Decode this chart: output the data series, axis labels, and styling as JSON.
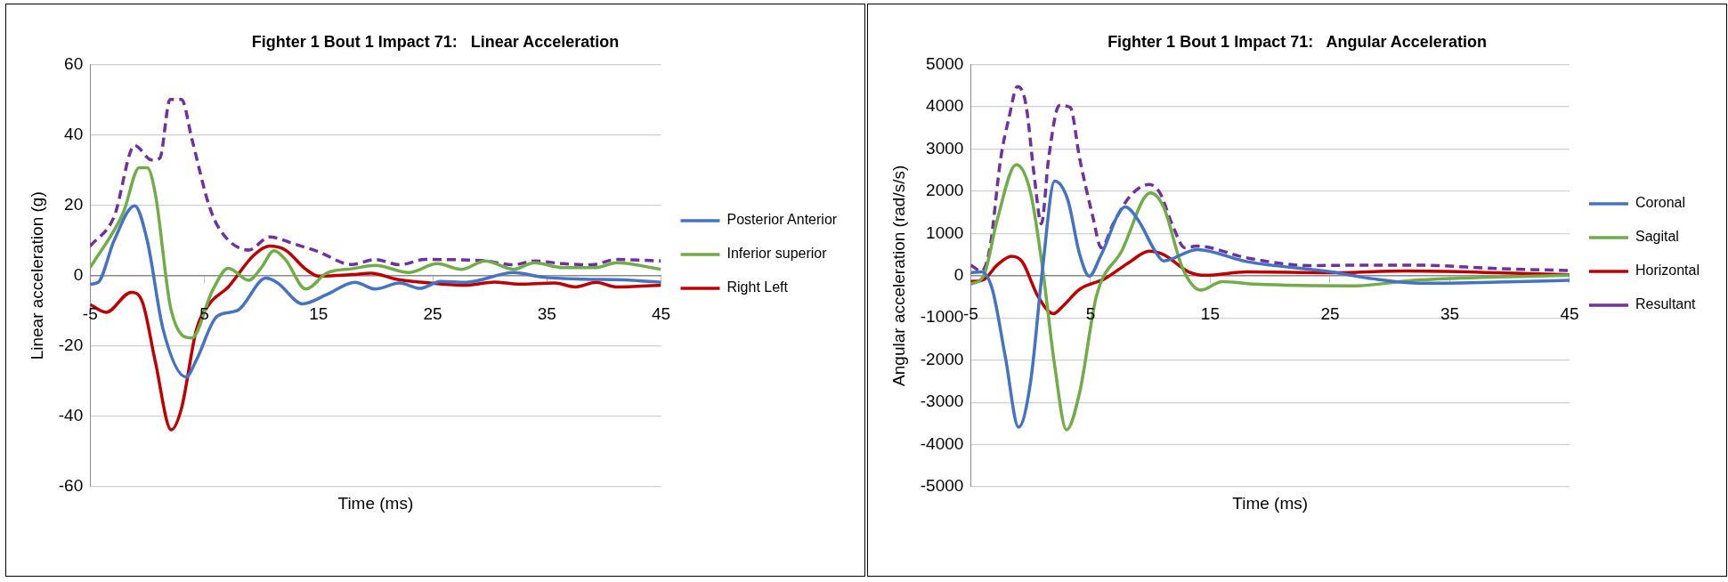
{
  "chart_data": [
    {
      "type": "line",
      "title": "Fighter 1 Bout 1 Impact 71:   Linear Acceleration",
      "xlabel": "Time (ms)",
      "ylabel": "Linear acceleration (g)",
      "xlim": [
        -5,
        45
      ],
      "xticks": [
        -5,
        5,
        15,
        25,
        35,
        45
      ],
      "ylim": [
        -60,
        60
      ],
      "yticks": [
        -60,
        -40,
        -20,
        0,
        20,
        40,
        60
      ],
      "grid": "y",
      "legend": "right",
      "marker": "none",
      "series": [
        {
          "name": "Posterior Anterior",
          "color": "#4472c4",
          "x": [
            -5,
            -4.3,
            -2.9,
            -1.1,
            0,
            1.4,
            3.4,
            4.3,
            6.1,
            7.9,
            10.4,
            11.4,
            13.6,
            15.7,
            18.2,
            20,
            22.1,
            23.9,
            25.7,
            27.9,
            32.1,
            34.6,
            38.2,
            41.8,
            45
          ],
          "values": [
            -2.4,
            -1.9,
            10,
            19.9,
            10,
            -15.4,
            -28.8,
            -24,
            -11.6,
            -9.9,
            -0.7,
            -2,
            -8,
            -5.4,
            -1.9,
            -3.8,
            -2.1,
            -3.6,
            -1.6,
            -1.9,
            0.9,
            -0.4,
            -1,
            -1.2,
            -1.9
          ]
        },
        {
          "name": "Inferior superior",
          "color": "#70ad47",
          "x": [
            -5,
            -2.1,
            -0.7,
            0,
            0.7,
            2.1,
            3.9,
            5.7,
            7.1,
            8.9,
            10,
            11.1,
            12.1,
            13.9,
            15.7,
            18,
            20,
            22.9,
            25.4,
            27.5,
            29.6,
            32.1,
            33.9,
            36.4,
            39.3,
            41.1,
            45
          ],
          "values": [
            2.3,
            17.9,
            30.7,
            30.7,
            23.4,
            -9.9,
            -17.7,
            -4.3,
            2.1,
            -1.3,
            2.3,
            7.1,
            4.6,
            -3.8,
            0.7,
            2,
            2.9,
            0.9,
            3.4,
            1.8,
            4.2,
            1.8,
            3.7,
            2.3,
            2.3,
            3.7,
            1.8
          ]
        },
        {
          "name": "Right Left",
          "color": "#c00000",
          "x": [
            -5,
            -3.6,
            -1.4,
            -0.4,
            0.7,
            2.1,
            3,
            4.3,
            5.4,
            7.1,
            9.3,
            10.7,
            12.1,
            13.9,
            15,
            17.9,
            19.6,
            21.8,
            23.9,
            27.9,
            30.4,
            32.5,
            35.7,
            37.5,
            39.3,
            41.1,
            45
          ],
          "values": [
            -8.2,
            -10.4,
            -4.7,
            -7.7,
            -24.3,
            -43.8,
            -37.7,
            -15.4,
            -8.2,
            -3.2,
            5.7,
            8.4,
            7.3,
            1.8,
            -0.1,
            0.3,
            0.7,
            -1,
            -1.8,
            -2.7,
            -1.8,
            -2.4,
            -2.1,
            -3.2,
            -1.9,
            -3.2,
            -2.7
          ]
        },
        {
          "color": "#7030a0",
          "line_style": "dashed",
          "x": [
            -5,
            -2.9,
            -1.1,
            0.4,
            1.1,
            2,
            3,
            3.9,
            5.4,
            6.4,
            8.9,
            10.7,
            12.9,
            15,
            17.9,
            20,
            22.1,
            24.3,
            29.3,
            32.1,
            33.9,
            36.4,
            38.9,
            41.1,
            45
          ],
          "values": [
            8.4,
            16.8,
            37,
            32.9,
            33.4,
            50.1,
            50.1,
            39,
            20.1,
            12.9,
            7.3,
            11,
            9,
            6.8,
            3.2,
            4.6,
            3.1,
            4.6,
            4.3,
            3.1,
            4.2,
            3.4,
            3.1,
            4.6,
            4.2
          ]
        }
      ]
    },
    {
      "type": "line",
      "title": "Fighter 1 Bout 1 Impact 71:   Angular Acceleration",
      "xlabel": "Time (ms)",
      "ylabel": "Angular acceleration (rad/s/s)",
      "xlim": [
        -5,
        45
      ],
      "xticks": [
        -5,
        5,
        15,
        25,
        35,
        45
      ],
      "ylim": [
        -5000,
        5000
      ],
      "yticks": [
        -5000,
        -4000,
        -3000,
        -2000,
        -1000,
        0,
        1000,
        2000,
        3000,
        4000,
        5000
      ],
      "grid": "y",
      "legend": "right",
      "marker": "none",
      "series": [
        {
          "name": "Coronal",
          "color": "#4472c4",
          "x": [
            -5,
            -4.1,
            -3.2,
            -2.1,
            -1,
            0,
            1,
            2,
            3.1,
            4.1,
            4.9,
            5.9,
            7.9,
            9,
            10.4,
            11.1,
            13.9,
            18.1,
            25.1,
            28.5,
            32.7,
            39,
            45
          ],
          "values": [
            70,
            90,
            -320,
            -1940,
            -3590,
            -2510,
            170,
            2240,
            1800,
            500,
            -10,
            500,
            1630,
            1310,
            580,
            350,
            620,
            330,
            90,
            -70,
            -180,
            -150,
            -110
          ]
        },
        {
          "name": "Sagital",
          "color": "#70ad47",
          "x": [
            -5,
            -3.9,
            -2.8,
            -1.2,
            0,
            1,
            2,
            3,
            4.1,
            5.5,
            7.6,
            10,
            11.1,
            12.7,
            14.2,
            16,
            18.8,
            27.1,
            32,
            39,
            45
          ],
          "values": [
            -200,
            10,
            1310,
            2630,
            1960,
            170,
            -2110,
            -3650,
            -2760,
            -480,
            580,
            1960,
            1630,
            170,
            -340,
            -140,
            -200,
            -240,
            -110,
            -30,
            10
          ]
        },
        {
          "name": "Horizontal",
          "color": "#c00000",
          "x": [
            -5,
            -3.9,
            -2.8,
            -1.6,
            -0.7,
            0.6,
            1.9,
            2.7,
            4.1,
            6.2,
            8.3,
            9.9,
            11.1,
            13.2,
            14.6,
            18.1,
            25.1,
            31.3,
            39,
            45
          ],
          "values": [
            -140,
            -90,
            250,
            460,
            330,
            -480,
            -900,
            -720,
            -320,
            -70,
            330,
            580,
            500,
            90,
            10,
            90,
            70,
            110,
            70,
            20
          ]
        },
        {
          "name": "Resultant",
          "color": "#7030a0",
          "line_style": "dashed",
          "x": [
            -5,
            -4.1,
            -3.4,
            -2.5,
            -1.8,
            -1.1,
            -0.4,
            0.3,
            0.9,
            1.5,
            2.4,
            3.3,
            4.1,
            5.2,
            5.9,
            6.9,
            8.3,
            9.9,
            10.8,
            11.8,
            12.9,
            13.9,
            18.1,
            23.3,
            28.5,
            32,
            39,
            45
          ],
          "values": [
            250,
            110,
            660,
            2770,
            3750,
            4480,
            4070,
            2370,
            1230,
            2770,
            4030,
            3990,
            2770,
            1390,
            660,
            1230,
            1880,
            2160,
            1960,
            1230,
            660,
            700,
            420,
            240,
            250,
            250,
            170,
            120
          ]
        }
      ]
    }
  ]
}
